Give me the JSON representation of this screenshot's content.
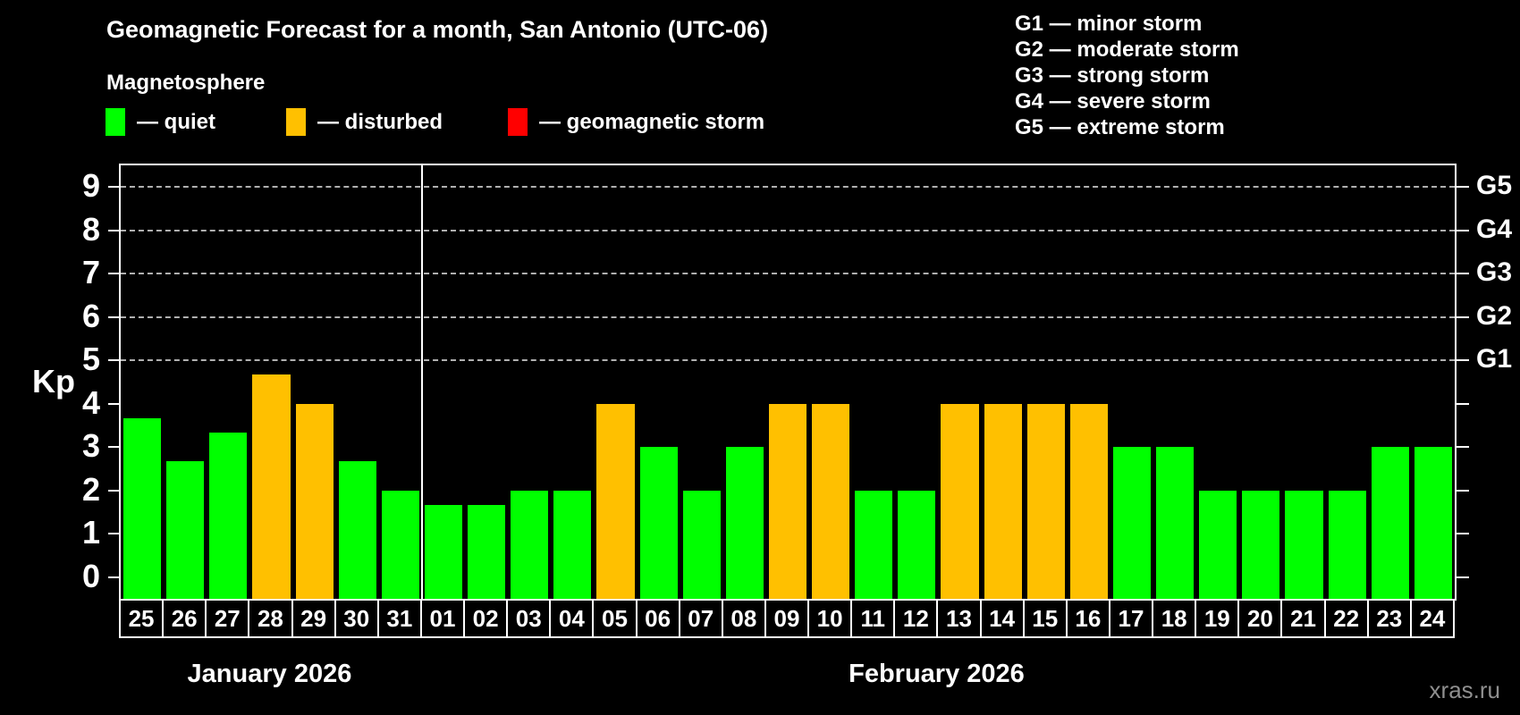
{
  "header": {
    "title": "Geomagnetic Forecast for a month, San Antonio (UTC-06)",
    "subtitle": "Magnetosphere"
  },
  "legend": {
    "items": [
      {
        "key": "quiet",
        "label": "— quiet",
        "color": "#00ff00"
      },
      {
        "key": "disturbed",
        "label": "— disturbed",
        "color": "#ffc000"
      },
      {
        "key": "storm",
        "label": "— geomagnetic storm",
        "color": "#ff0000"
      }
    ]
  },
  "g_legend": {
    "items": [
      "G1 — minor storm",
      "G2 — moderate storm",
      "G3 — strong storm",
      "G4 — severe storm",
      "G5 — extreme storm"
    ]
  },
  "watermark": "xras.ru",
  "chart_data": {
    "type": "bar",
    "title": "Geomagnetic Forecast for a month, San Antonio (UTC-06)",
    "ylabel": "Kp",
    "ylim": [
      -0.5,
      9.5
    ],
    "y_ticks": [
      0,
      1,
      2,
      3,
      4,
      5,
      6,
      7,
      8,
      9
    ],
    "gridlines_at": [
      5,
      6,
      7,
      8,
      9
    ],
    "right_axis_labels": {
      "5": "G1",
      "6": "G2",
      "7": "G3",
      "8": "G4",
      "9": "G5"
    },
    "grid": true,
    "legend_position": "top-left",
    "months": [
      {
        "label": "January 2026",
        "days": 7
      },
      {
        "label": "February 2026",
        "days": 24
      }
    ],
    "categories": [
      "25",
      "26",
      "27",
      "28",
      "29",
      "30",
      "31",
      "01",
      "02",
      "03",
      "04",
      "05",
      "06",
      "07",
      "08",
      "09",
      "10",
      "11",
      "12",
      "13",
      "14",
      "15",
      "16",
      "17",
      "18",
      "19",
      "20",
      "21",
      "22",
      "23",
      "24"
    ],
    "values": [
      3.67,
      2.67,
      3.33,
      4.67,
      4,
      2.67,
      2,
      1.67,
      1.67,
      2,
      2,
      4,
      3,
      2,
      3,
      4,
      4,
      2,
      2,
      4,
      4,
      4,
      4,
      3,
      3,
      2,
      2,
      2,
      2,
      3,
      3
    ],
    "statuses": [
      "quiet",
      "quiet",
      "quiet",
      "disturbed",
      "disturbed",
      "quiet",
      "quiet",
      "quiet",
      "quiet",
      "quiet",
      "quiet",
      "disturbed",
      "quiet",
      "quiet",
      "quiet",
      "disturbed",
      "disturbed",
      "quiet",
      "quiet",
      "disturbed",
      "disturbed",
      "disturbed",
      "disturbed",
      "quiet",
      "quiet",
      "quiet",
      "quiet",
      "quiet",
      "quiet",
      "quiet",
      "quiet"
    ],
    "colors": {
      "quiet": "#00ff00",
      "disturbed": "#ffc000",
      "storm": "#ff0000"
    }
  }
}
